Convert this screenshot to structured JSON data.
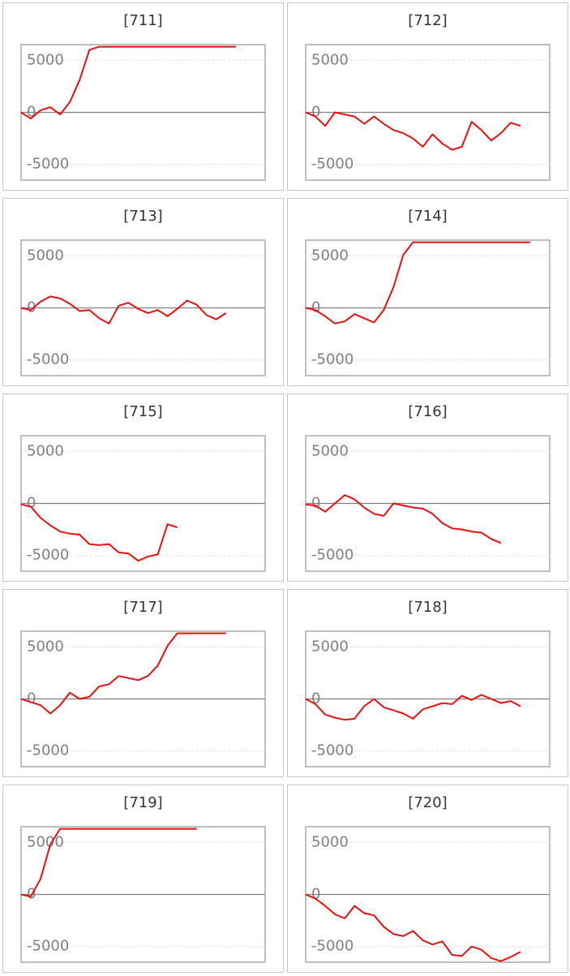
{
  "chart_data": [
    {
      "type": "line",
      "title": "[711]",
      "color": "#e81010",
      "xlim": [
        0,
        25
      ],
      "ylim": [
        -6500,
        6500
      ],
      "yticks": [
        -5000,
        0,
        5000
      ],
      "values": [
        0,
        -600,
        200,
        500,
        -200,
        1000,
        3100,
        6000,
        6300,
        6300,
        6300,
        6300,
        6300,
        6300,
        6300,
        6300,
        6300,
        6300,
        6300,
        6300,
        6300,
        6300,
        6300
      ]
    },
    {
      "type": "line",
      "title": "[712]",
      "color": "#e81010",
      "xlim": [
        0,
        25
      ],
      "ylim": [
        -6500,
        6500
      ],
      "yticks": [
        -5000,
        0,
        5000
      ],
      "values": [
        0,
        -400,
        -1300,
        0,
        -200,
        -400,
        -1100,
        -400,
        -1100,
        -1700,
        -2000,
        -2500,
        -3300,
        -2100,
        -3000,
        -3600,
        -3300,
        -900,
        -1700,
        -2700,
        -2000,
        -1000,
        -1300
      ]
    },
    {
      "type": "line",
      "title": "[713]",
      "color": "#e81010",
      "xlim": [
        0,
        25
      ],
      "ylim": [
        -6500,
        6500
      ],
      "yticks": [
        -5000,
        0,
        5000
      ],
      "values": [
        0,
        -200,
        600,
        1100,
        900,
        400,
        -300,
        -200,
        -1000,
        -1500,
        200,
        500,
        -100,
        -500,
        -200,
        -800,
        -100,
        700,
        300,
        -700,
        -1100,
        -500
      ]
    },
    {
      "type": "line",
      "title": "[714]",
      "color": "#e81010",
      "xlim": [
        0,
        25
      ],
      "ylim": [
        -6500,
        6500
      ],
      "yticks": [
        -5000,
        0,
        5000
      ],
      "values": [
        0,
        -200,
        -800,
        -1500,
        -1300,
        -600,
        -1000,
        -1400,
        -200,
        2000,
        5100,
        6300,
        6300,
        6300,
        6300,
        6300,
        6300,
        6300,
        6300,
        6300,
        6300,
        6300,
        6300,
        6300
      ]
    },
    {
      "type": "line",
      "title": "[715]",
      "color": "#e81010",
      "xlim": [
        0,
        25
      ],
      "ylim": [
        -6500,
        6500
      ],
      "yticks": [
        -5000,
        0,
        5000
      ],
      "values": [
        -100,
        -300,
        -1400,
        -2100,
        -2700,
        -2900,
        -3000,
        -3900,
        -4000,
        -3900,
        -4700,
        -4800,
        -5500,
        -5100,
        -4900,
        -2000,
        -2300
      ]
    },
    {
      "type": "line",
      "title": "[716]",
      "color": "#e81010",
      "xlim": [
        0,
        25
      ],
      "ylim": [
        -6500,
        6500
      ],
      "yticks": [
        -5000,
        0,
        5000
      ],
      "values": [
        -100,
        -200,
        -800,
        0,
        800,
        400,
        -400,
        -1000,
        -1200,
        0,
        -200,
        -400,
        -500,
        -1000,
        -1900,
        -2400,
        -2500,
        -2700,
        -2800,
        -3400,
        -3800
      ]
    },
    {
      "type": "line",
      "title": "[717]",
      "color": "#e81010",
      "xlim": [
        0,
        25
      ],
      "ylim": [
        -6500,
        6500
      ],
      "yticks": [
        -5000,
        0,
        5000
      ],
      "values": [
        0,
        -300,
        -600,
        -1400,
        -600,
        600,
        0,
        200,
        1200,
        1400,
        2200,
        2000,
        1800,
        2200,
        3200,
        5100,
        6300,
        6300,
        6300,
        6300,
        6300,
        6300
      ]
    },
    {
      "type": "line",
      "title": "[718]",
      "color": "#e81010",
      "xlim": [
        0,
        25
      ],
      "ylim": [
        -6500,
        6500
      ],
      "yticks": [
        -5000,
        0,
        5000
      ],
      "values": [
        0,
        -500,
        -1500,
        -1800,
        -2000,
        -1900,
        -700,
        0,
        -800,
        -1100,
        -1400,
        -1900,
        -1000,
        -700,
        -400,
        -500,
        300,
        -100,
        400,
        0,
        -400,
        -200,
        -700
      ]
    },
    {
      "type": "line",
      "title": "[719]",
      "color": "#e81010",
      "xlim": [
        0,
        25
      ],
      "ylim": [
        -6500,
        6500
      ],
      "yticks": [
        -5000,
        0,
        5000
      ],
      "values": [
        0,
        -200,
        1500,
        4800,
        6300,
        6300,
        6300,
        6300,
        6300,
        6300,
        6300,
        6300,
        6300,
        6300,
        6300,
        6300,
        6300,
        6300,
        6300
      ]
    },
    {
      "type": "line",
      "title": "[720]",
      "color": "#e81010",
      "xlim": [
        0,
        25
      ],
      "ylim": [
        -6500,
        6500
      ],
      "yticks": [
        -5000,
        0,
        5000
      ],
      "values": [
        0,
        -400,
        -1100,
        -1900,
        -2300,
        -1100,
        -1800,
        -2000,
        -3100,
        -3800,
        -4000,
        -3500,
        -4400,
        -4800,
        -4500,
        -5800,
        -5900,
        -5000,
        -5300,
        -6100,
        -6400,
        -6000,
        -5500
      ]
    }
  ]
}
